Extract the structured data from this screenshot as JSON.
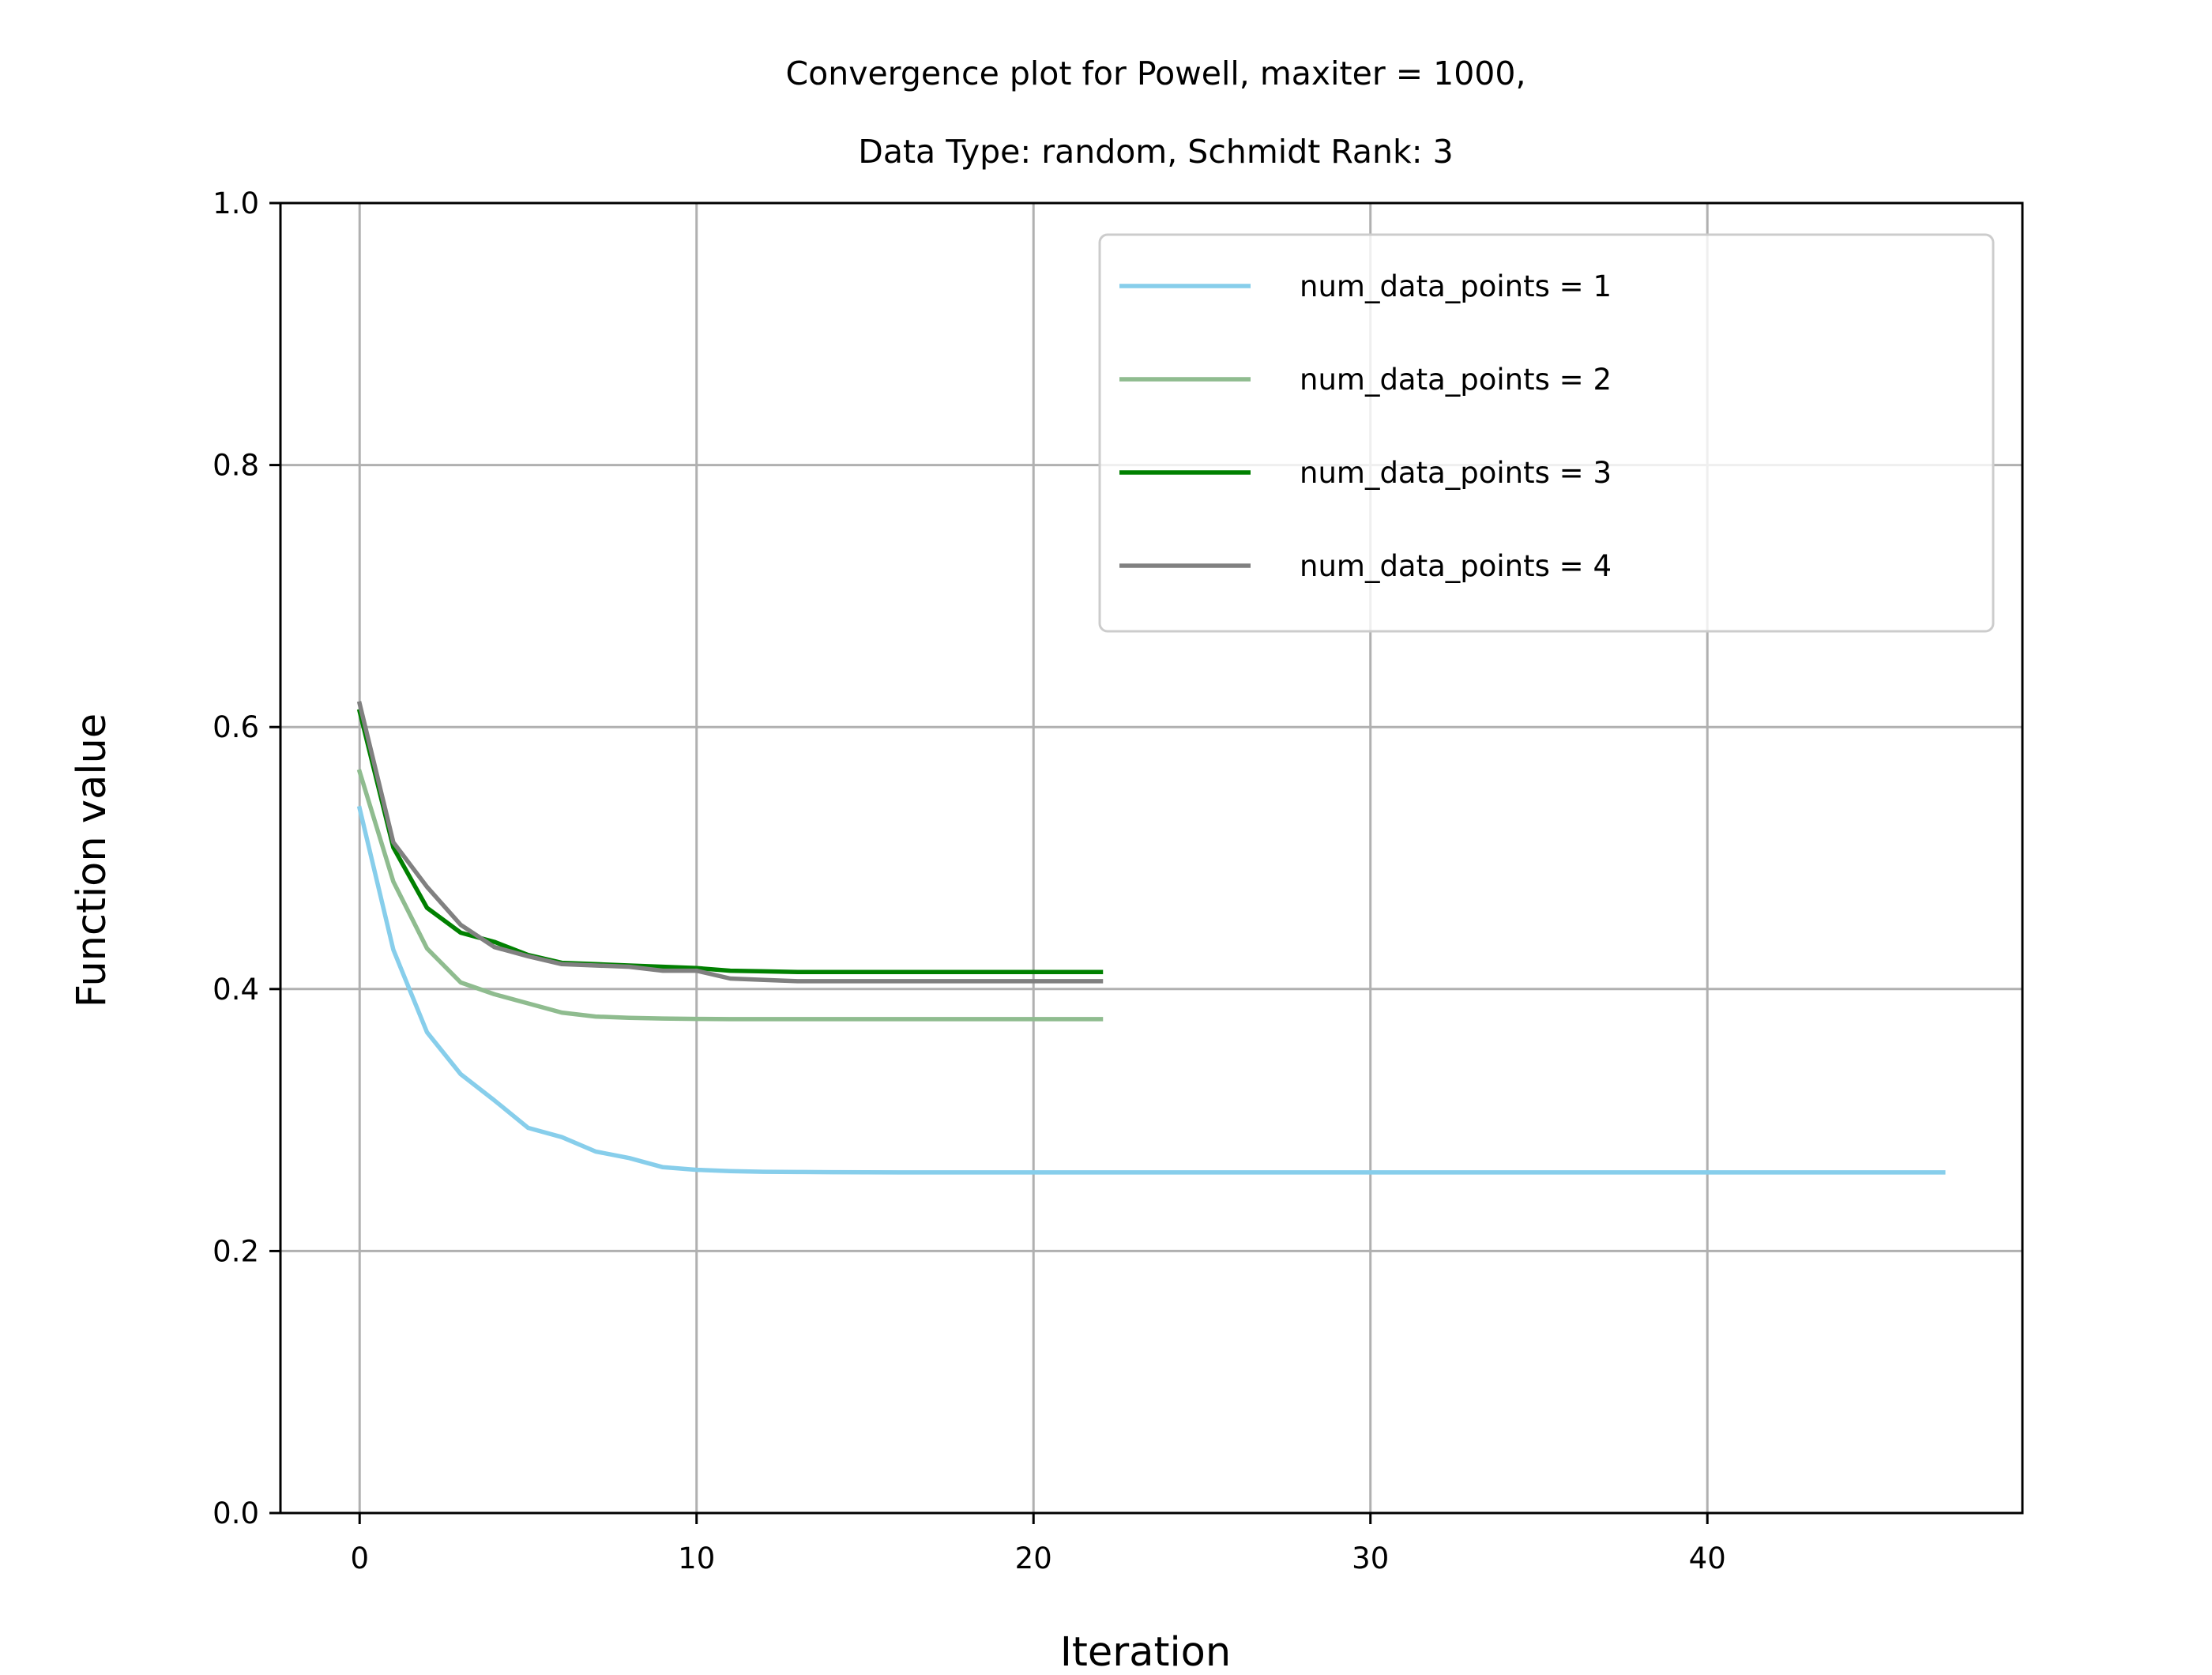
{
  "chart_data": {
    "type": "line",
    "title_line1": "Convergence plot for Powell, maxiter = 1000,",
    "title_line2": "Data Type: random, Schmidt Rank: 3",
    "xlabel": "Iteration",
    "ylabel": "Function value",
    "xlim": [
      -2.35,
      49.35
    ],
    "ylim": [
      0.0,
      1.0
    ],
    "x_ticks": [
      0,
      10,
      20,
      30,
      40
    ],
    "x_tick_labels": [
      "0",
      "10",
      "20",
      "30",
      "40"
    ],
    "y_ticks": [
      0.0,
      0.2,
      0.4,
      0.6,
      0.8,
      1.0
    ],
    "y_tick_labels": [
      "0.0",
      "0.2",
      "0.4",
      "0.6",
      "0.8",
      "1.0"
    ],
    "grid": true,
    "legend_position": "upper right",
    "series": [
      {
        "name": "num_data_points = 1",
        "color": "#87ceeb",
        "x": [
          0,
          1,
          2,
          3,
          4,
          5,
          6,
          7,
          8,
          9,
          10,
          11,
          12,
          13,
          14,
          15,
          16,
          17,
          18,
          19,
          20,
          21,
          22,
          23,
          24,
          25,
          26,
          27,
          28,
          29,
          30,
          31,
          32,
          33,
          34,
          35,
          36,
          37,
          38,
          39,
          40,
          41,
          42,
          43,
          44,
          45,
          46,
          47
        ],
        "y": [
          0.538,
          0.43,
          0.367,
          0.335,
          0.315,
          0.294,
          0.287,
          0.276,
          0.271,
          0.264,
          0.262,
          0.261,
          0.2605,
          0.2603,
          0.2602,
          0.2601,
          0.26,
          0.26,
          0.26,
          0.26,
          0.26,
          0.26,
          0.26,
          0.26,
          0.26,
          0.26,
          0.26,
          0.26,
          0.26,
          0.26,
          0.26,
          0.26,
          0.26,
          0.26,
          0.26,
          0.26,
          0.26,
          0.26,
          0.26,
          0.26,
          0.26,
          0.26,
          0.26,
          0.26,
          0.26,
          0.26,
          0.26,
          0.26
        ]
      },
      {
        "name": "num_data_points = 2",
        "color": "#8fbc8f",
        "x": [
          0,
          1,
          2,
          3,
          4,
          5,
          6,
          7,
          8,
          9,
          10,
          11,
          12,
          13,
          14,
          15,
          16,
          17,
          18,
          19,
          20,
          21,
          22
        ],
        "y": [
          0.566,
          0.482,
          0.431,
          0.405,
          0.396,
          0.389,
          0.382,
          0.379,
          0.378,
          0.3775,
          0.3772,
          0.377,
          0.377,
          0.377,
          0.377,
          0.377,
          0.377,
          0.377,
          0.377,
          0.377,
          0.377,
          0.377,
          0.377
        ]
      },
      {
        "name": "num_data_points = 3",
        "color": "#008000",
        "x": [
          0,
          1,
          2,
          3,
          4,
          5,
          6,
          7,
          8,
          9,
          10,
          11,
          12,
          13,
          14,
          15,
          16,
          17,
          18,
          19,
          20,
          21,
          22
        ],
        "y": [
          0.612,
          0.508,
          0.462,
          0.443,
          0.436,
          0.426,
          0.42,
          0.419,
          0.418,
          0.417,
          0.416,
          0.414,
          0.4135,
          0.413,
          0.413,
          0.413,
          0.413,
          0.413,
          0.413,
          0.413,
          0.413,
          0.413,
          0.413
        ]
      },
      {
        "name": "num_data_points = 4",
        "color": "#808080",
        "x": [
          0,
          1,
          2,
          3,
          4,
          5,
          6,
          7,
          8,
          9,
          10,
          11,
          12,
          13,
          14,
          15,
          16,
          17,
          18,
          19,
          20,
          21,
          22
        ],
        "y": [
          0.618,
          0.512,
          0.478,
          0.449,
          0.432,
          0.425,
          0.419,
          0.418,
          0.417,
          0.414,
          0.414,
          0.408,
          0.407,
          0.406,
          0.406,
          0.406,
          0.406,
          0.406,
          0.406,
          0.406,
          0.406,
          0.406,
          0.406
        ]
      }
    ]
  }
}
